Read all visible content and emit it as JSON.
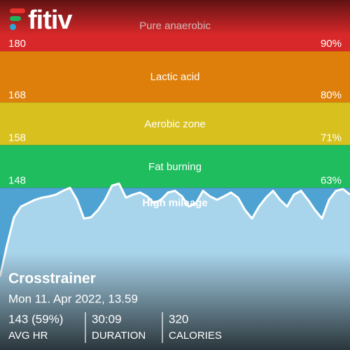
{
  "logo": "fitiv",
  "chart_data": {
    "type": "line",
    "ylim": [
      110,
      192
    ],
    "zones": [
      {
        "name": "Pure anaerobic",
        "color": "#d8282a",
        "bpm": 180,
        "percent": {
          "value": 90,
          "label": "90%"
        }
      },
      {
        "name": "Lactic acid",
        "color": "#df7f0b",
        "bpm": 168,
        "percent": {
          "value": 80,
          "label": "80%"
        }
      },
      {
        "name": "Aerobic zone",
        "color": "#d8c11e",
        "bpm": 158,
        "percent": {
          "value": 71,
          "label": "71%"
        }
      },
      {
        "name": "Fat burning",
        "color": "#1fbd5e",
        "bpm": 148,
        "percent": {
          "value": 63,
          "label": "63%"
        }
      },
      {
        "name": "High mileage",
        "color": "#4ea3d3"
      }
    ],
    "series": [
      {
        "color": "#ffffff",
        "fill": "#a9d5ec",
        "values": [
          127.2,
          134.6,
          141.1,
          143.6,
          144.4,
          145.2,
          145.7,
          146.0,
          146.4,
          147.3,
          148.0,
          145.2,
          140.8,
          141.1,
          142.8,
          145.2,
          148.5,
          149.0,
          145.7,
          146.4,
          146.9,
          146.0,
          144.4,
          145.2,
          146.9,
          147.3,
          146.0,
          143.6,
          144.4,
          147.3,
          146.0,
          145.2,
          146.0,
          146.9,
          145.7,
          142.8,
          140.8,
          143.6,
          145.7,
          147.3,
          145.2,
          143.6,
          146.4,
          147.3,
          145.2,
          142.8,
          140.8,
          145.2,
          147.3,
          147.7,
          146.4
        ]
      }
    ]
  },
  "workout": {
    "title": "Crosstrainer",
    "date": "Mon 11. Apr 2022, 13.59",
    "stats": [
      {
        "value": "143 (59%)",
        "label": "AVG HR"
      },
      {
        "value": "30:09",
        "label": "DURATION"
      },
      {
        "value": 320,
        "label": "CALORIES"
      }
    ]
  }
}
